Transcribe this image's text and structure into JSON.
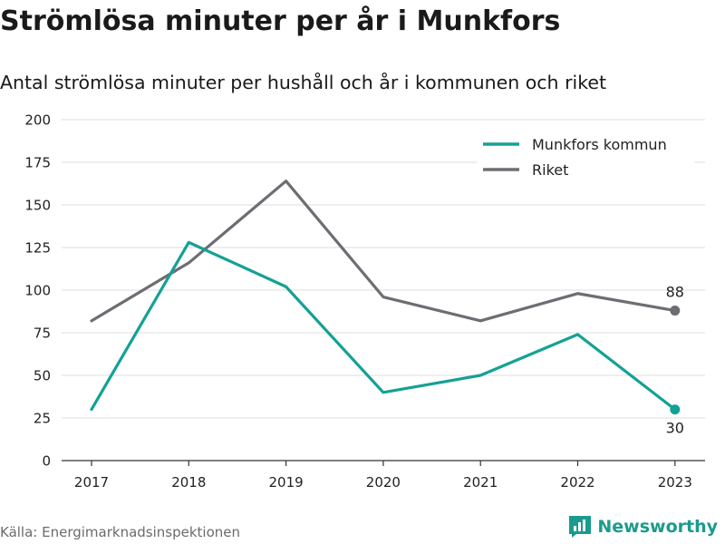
{
  "title": "Strömlösa minuter per år i Munkfors",
  "subtitle": "Antal strömlösa minuter per hushåll och år i kommunen och riket",
  "source": "Källa: Energimarknadsinspektionen",
  "brand": {
    "name": "Newsworthy",
    "icon": "newsworthy-logo-icon",
    "color": "#1a9b8e"
  },
  "chart_data": {
    "type": "line",
    "x": [
      "2017",
      "2018",
      "2019",
      "2020",
      "2021",
      "2022",
      "2023"
    ],
    "ylim": [
      0,
      200
    ],
    "yticks": [
      0,
      25,
      50,
      75,
      100,
      125,
      150,
      175,
      200
    ],
    "grid": true,
    "legend_position": "top-right",
    "series": [
      {
        "name": "Munkfors kommun",
        "color": "#14a195",
        "values": [
          30,
          128,
          102,
          40,
          50,
          74,
          30
        ],
        "end_label": "30"
      },
      {
        "name": "Riket",
        "color": "#6e6d73",
        "values": [
          82,
          116,
          164,
          96,
          82,
          98,
          88
        ],
        "end_label": "88"
      }
    ]
  }
}
